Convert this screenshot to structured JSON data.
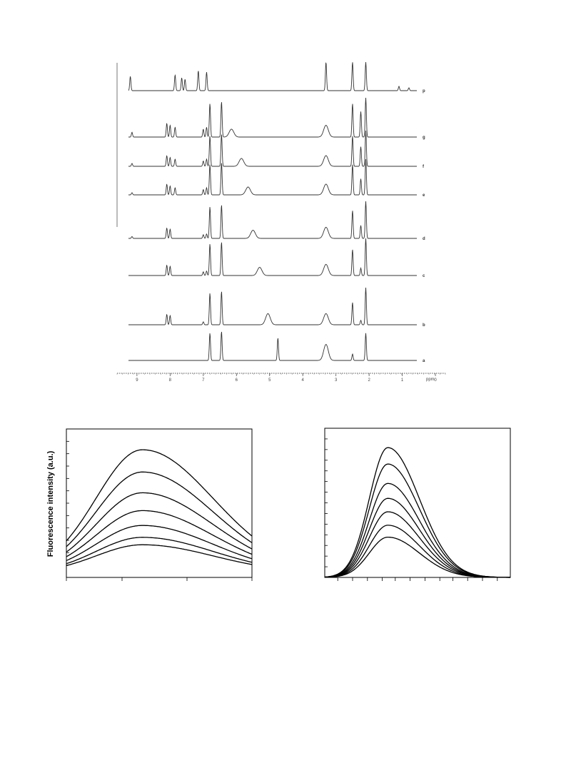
{
  "chart_data": [
    {
      "type": "line",
      "xlabel": "ppm",
      "xlim": [
        9.6,
        -0.3
      ],
      "x_tick_labels": [
        "9",
        "8",
        "7",
        "6",
        "5",
        "4",
        "3",
        "2",
        "1",
        "0"
      ],
      "series": [
        {
          "name": "p",
          "peaks": [
            [
              9.2,
              0.5
            ],
            [
              7.85,
              0.55
            ],
            [
              7.65,
              0.45
            ],
            [
              7.55,
              0.4
            ],
            [
              7.15,
              0.7
            ],
            [
              6.9,
              0.65
            ],
            [
              3.3,
              1.0
            ],
            [
              2.5,
              1.0
            ],
            [
              2.1,
              1.0
            ],
            [
              1.1,
              0.15
            ],
            [
              0.8,
              0.1
            ],
            [
              0.05,
              0.3
            ]
          ]
        },
        {
          "name": "g",
          "peaks": [
            [
              9.15,
              0.12
            ],
            [
              8.1,
              0.35
            ],
            [
              8.0,
              0.3
            ],
            [
              7.85,
              0.25
            ],
            [
              7.0,
              0.2
            ],
            [
              6.9,
              0.25
            ],
            [
              6.8,
              0.85
            ],
            [
              6.45,
              0.9
            ],
            [
              6.15,
              0.2
            ],
            [
              3.3,
              0.3
            ],
            [
              2.5,
              0.85
            ],
            [
              2.25,
              0.65
            ],
            [
              2.1,
              1.0
            ],
            [
              0.05,
              0.05
            ]
          ]
        },
        {
          "name": "f",
          "peaks": [
            [
              9.15,
              0.08
            ],
            [
              8.1,
              0.3
            ],
            [
              8.0,
              0.25
            ],
            [
              7.85,
              0.2
            ],
            [
              7.0,
              0.15
            ],
            [
              6.9,
              0.2
            ],
            [
              6.8,
              0.85
            ],
            [
              6.45,
              0.9
            ],
            [
              5.85,
              0.22
            ],
            [
              3.3,
              0.3
            ],
            [
              2.5,
              0.85
            ],
            [
              2.25,
              0.55
            ],
            [
              2.1,
              1.0
            ],
            [
              0.05,
              0.05
            ]
          ]
        },
        {
          "name": "e",
          "peaks": [
            [
              9.15,
              0.06
            ],
            [
              8.1,
              0.3
            ],
            [
              8.0,
              0.25
            ],
            [
              7.85,
              0.2
            ],
            [
              7.0,
              0.15
            ],
            [
              6.9,
              0.2
            ],
            [
              6.8,
              0.85
            ],
            [
              6.45,
              0.9
            ],
            [
              5.65,
              0.22
            ],
            [
              3.3,
              0.3
            ],
            [
              2.5,
              0.85
            ],
            [
              2.25,
              0.45
            ],
            [
              2.1,
              1.0
            ],
            [
              0.05,
              0.05
            ]
          ]
        },
        {
          "name": "d",
          "peaks": [
            [
              9.15,
              0.05
            ],
            [
              8.1,
              0.28
            ],
            [
              8.0,
              0.25
            ],
            [
              7.0,
              0.1
            ],
            [
              6.9,
              0.12
            ],
            [
              6.8,
              0.85
            ],
            [
              6.45,
              0.9
            ],
            [
              5.5,
              0.22
            ],
            [
              3.3,
              0.3
            ],
            [
              2.5,
              0.75
            ],
            [
              2.25,
              0.35
            ],
            [
              2.1,
              1.0
            ],
            [
              0.05,
              0.05
            ]
          ]
        },
        {
          "name": "c",
          "peaks": [
            [
              8.1,
              0.28
            ],
            [
              8.0,
              0.25
            ],
            [
              7.0,
              0.1
            ],
            [
              6.9,
              0.12
            ],
            [
              6.8,
              0.85
            ],
            [
              6.45,
              0.9
            ],
            [
              5.3,
              0.22
            ],
            [
              3.3,
              0.3
            ],
            [
              2.5,
              0.7
            ],
            [
              2.25,
              0.2
            ],
            [
              2.1,
              1.0
            ],
            [
              0.05,
              0.05
            ]
          ]
        },
        {
          "name": "b",
          "peaks": [
            [
              8.1,
              0.28
            ],
            [
              8.0,
              0.25
            ],
            [
              7.0,
              0.08
            ],
            [
              6.8,
              0.85
            ],
            [
              6.45,
              0.9
            ],
            [
              5.05,
              0.3
            ],
            [
              3.3,
              0.3
            ],
            [
              2.5,
              0.6
            ],
            [
              2.25,
              0.12
            ],
            [
              2.1,
              1.0
            ],
            [
              0.05,
              0.05
            ]
          ]
        },
        {
          "name": "a",
          "peaks": [
            [
              6.8,
              0.85
            ],
            [
              6.45,
              0.9
            ],
            [
              4.75,
              0.7
            ],
            [
              3.3,
              0.5
            ],
            [
              2.5,
              0.2
            ],
            [
              2.1,
              0.85
            ],
            [
              0.05,
              0.05
            ]
          ]
        }
      ]
    },
    {
      "type": "line",
      "title": "",
      "xlabel": "",
      "ylabel": "Fluorescence intensity (a.u.)",
      "xlim": [
        0,
        1
      ],
      "ylim": [
        0,
        1
      ],
      "curve": {
        "peak_x": 0.41,
        "width_left": 0.25,
        "width_right": 0.38,
        "baseline": 0.03
      },
      "series": [
        {
          "values": [
            0.86
          ]
        },
        {
          "values": [
            0.71
          ]
        },
        {
          "values": [
            0.57
          ]
        },
        {
          "values": [
            0.45
          ]
        },
        {
          "values": [
            0.35
          ]
        },
        {
          "values": [
            0.27
          ]
        },
        {
          "values": [
            0.22
          ]
        }
      ]
    },
    {
      "type": "line",
      "title": "",
      "xlabel": "",
      "ylabel": "",
      "xlim": [
        0,
        1
      ],
      "ylim": [
        0,
        1
      ],
      "curve": {
        "peak_x": 0.34,
        "width_left": 0.1,
        "width_right": 0.17,
        "baseline": 0.0
      },
      "series": [
        {
          "values": [
            0.87
          ]
        },
        {
          "values": [
            0.76
          ]
        },
        {
          "values": [
            0.63
          ]
        },
        {
          "values": [
            0.53
          ]
        },
        {
          "values": [
            0.44
          ]
        },
        {
          "values": [
            0.35
          ]
        },
        {
          "values": [
            0.27
          ]
        }
      ]
    }
  ]
}
